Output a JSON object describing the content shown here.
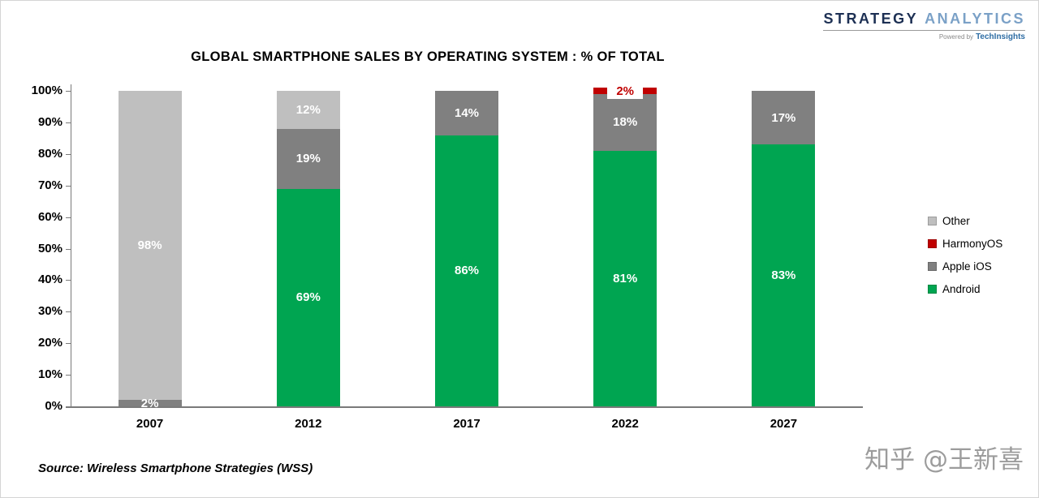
{
  "header": {
    "logo": {
      "part1": "STRATEGY",
      "part2": "ANALYTICS",
      "powered_prefix": "Powered by",
      "powered_brand": "TechInsights"
    }
  },
  "chart_data": {
    "type": "bar",
    "stacked": true,
    "title": "GLOBAL SMARTPHONE SALES BY OPERATING SYSTEM : % OF TOTAL",
    "categories": [
      "2007",
      "2012",
      "2017",
      "2022",
      "2027"
    ],
    "series": [
      {
        "name": "Android",
        "color": "#00A551",
        "label_color": "#FFFFFF",
        "values": [
          0,
          69,
          86,
          81,
          83
        ]
      },
      {
        "name": "Apple iOS",
        "color": "#808080",
        "label_color": "#FFFFFF",
        "values": [
          2,
          19,
          14,
          18,
          17
        ]
      },
      {
        "name": "HarmonyOS",
        "color": "#C00000",
        "label_color": "#C00000",
        "label_bg": "#FFFFFF",
        "values": [
          0,
          0,
          0,
          2,
          0
        ]
      },
      {
        "name": "Other",
        "color": "#BFBFBF",
        "label_color": "#FFFFFF",
        "values": [
          98,
          12,
          0,
          0,
          0
        ]
      }
    ],
    "xlabel": "",
    "ylabel": "",
    "ylim": [
      0,
      100
    ],
    "yticks": [
      "0%",
      "10%",
      "20%",
      "30%",
      "40%",
      "50%",
      "60%",
      "70%",
      "80%",
      "90%",
      "100%"
    ],
    "grid": false,
    "legend_position": "right",
    "legend": [
      {
        "label": "Other",
        "color": "#BFBFBF"
      },
      {
        "label": "HarmonyOS",
        "color": "#C00000"
      },
      {
        "label": "Apple iOS",
        "color": "#808080"
      },
      {
        "label": "Android",
        "color": "#00A551"
      }
    ]
  },
  "footer": {
    "source": "Source: Wireless Smartphone Strategies (WSS)",
    "watermark": "知乎 @王新喜"
  }
}
